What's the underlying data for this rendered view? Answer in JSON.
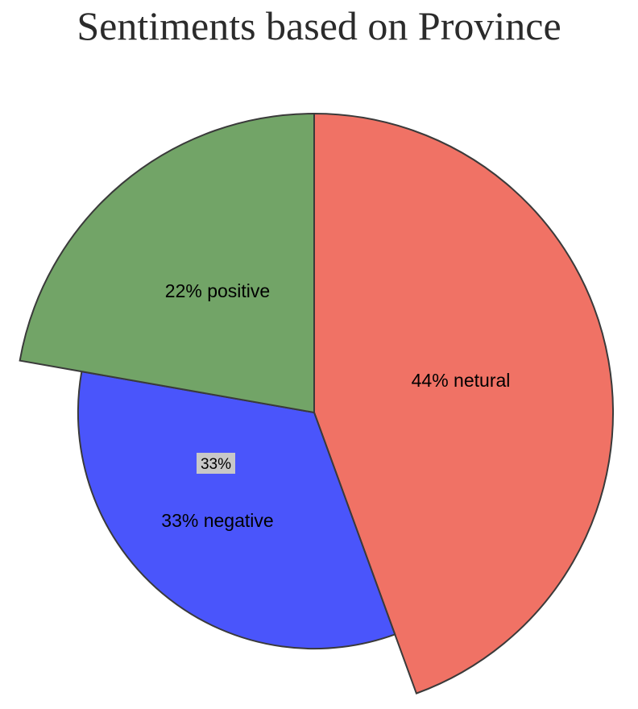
{
  "chart_data": {
    "type": "pie",
    "title": "Sentiments based on Province",
    "slices": [
      {
        "label": "netural",
        "value": 44,
        "display": "44% netural",
        "color": "#f07265"
      },
      {
        "label": "negative",
        "value": 33,
        "display": "33% negative",
        "color": "#4a55fb"
      },
      {
        "label": "positive",
        "value": 22,
        "display": "22% positive",
        "color": "#72a467"
      }
    ],
    "tooltip": {
      "text": "33%"
    }
  }
}
